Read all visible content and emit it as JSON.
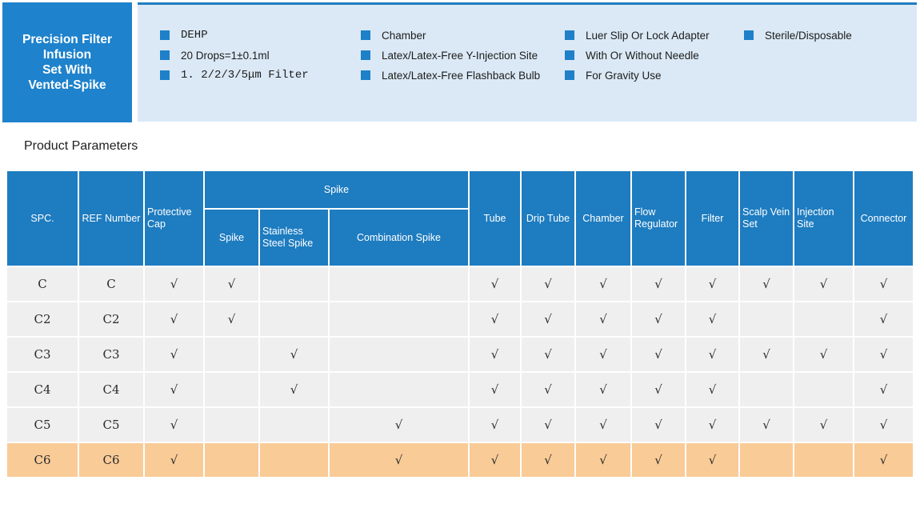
{
  "colors": {
    "accent_blue": "#1e7cc0",
    "hero_blue": "#1e82cc",
    "banner_bg": "#dbe9f6",
    "row_gray": "#efefef",
    "highlight_orange": "#f9cb97"
  },
  "hero": {
    "title": "Precision Filter\nInfusion\nSet With\nVented-Spike"
  },
  "features": {
    "columns": [
      [
        {
          "text": "DEHP",
          "mono": true
        },
        {
          "text": "20 Drops=1±0.1ml",
          "mono": false
        },
        {
          "text": "1. 2/2/3/5μm Filter",
          "mono": true
        }
      ],
      [
        {
          "text": "Chamber",
          "mono": false
        },
        {
          "text": "Latex/Latex-Free Y-Injection Site",
          "mono": false
        },
        {
          "text": "Latex/Latex-Free Flashback Bulb",
          "mono": false
        }
      ],
      [
        {
          "text": "Luer Slip Or Lock Adapter",
          "mono": false
        },
        {
          "text": "With Or Without Needle",
          "mono": false
        },
        {
          "text": "For Gravity Use",
          "mono": false
        }
      ],
      [
        {
          "text": "Sterile/Disposable",
          "mono": false
        }
      ]
    ]
  },
  "section_title": "Product Parameters",
  "check_mark": "√",
  "table": {
    "headers": {
      "spc": "SPC.",
      "ref": "REF Number",
      "protective_cap": "Protective Cap",
      "spike_group": "Spike",
      "spike": "Spike",
      "stainless": "Stainless Steel Spike",
      "combination": "Combination Spike",
      "tube": "Tube",
      "drip": "Drip Tube",
      "chamber": "Chamber",
      "flow": "Flow Regulator",
      "filter": "Filter",
      "scalp": "Scalp Vein Set",
      "injection": "Injection Site",
      "connector": "Connector"
    },
    "check_columns": [
      "protective_cap",
      "spike",
      "stainless",
      "combination",
      "tube",
      "drip",
      "chamber",
      "flow",
      "filter",
      "scalp",
      "injection",
      "connector"
    ],
    "rows": [
      {
        "spc": "C",
        "ref": "C",
        "checks": [
          1,
          1,
          0,
          0,
          1,
          1,
          1,
          1,
          1,
          1,
          1,
          1
        ],
        "highlight": false
      },
      {
        "spc": "C2",
        "ref": "C2",
        "checks": [
          1,
          1,
          0,
          0,
          1,
          1,
          1,
          1,
          1,
          0,
          0,
          1
        ],
        "highlight": false
      },
      {
        "spc": "C3",
        "ref": "C3",
        "checks": [
          1,
          0,
          1,
          0,
          1,
          1,
          1,
          1,
          1,
          1,
          1,
          1
        ],
        "highlight": false
      },
      {
        "spc": "C4",
        "ref": "C4",
        "checks": [
          1,
          0,
          1,
          0,
          1,
          1,
          1,
          1,
          1,
          0,
          0,
          1
        ],
        "highlight": false
      },
      {
        "spc": "C5",
        "ref": "C5",
        "checks": [
          1,
          0,
          0,
          1,
          1,
          1,
          1,
          1,
          1,
          1,
          1,
          1
        ],
        "highlight": false
      },
      {
        "spc": "C6",
        "ref": "C6",
        "checks": [
          1,
          0,
          0,
          1,
          1,
          1,
          1,
          1,
          1,
          0,
          0,
          1
        ],
        "highlight": true
      }
    ]
  }
}
